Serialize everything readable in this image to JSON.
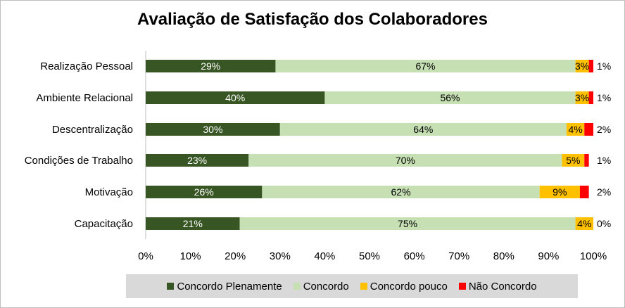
{
  "chart_data": {
    "type": "bar",
    "orientation": "horizontal",
    "stacked": true,
    "title": "Avaliação de Satisfação dos Colaboradores",
    "categories": [
      "Realização Pessoal",
      "Ambiente Relacional",
      "Descentralização",
      "Condições de Trabalho",
      "Motivação",
      "Capacitação"
    ],
    "series": [
      {
        "name": "Concordo Plenamente",
        "color": "#375623",
        "values": [
          29,
          40,
          30,
          23,
          26,
          21
        ]
      },
      {
        "name": "Concordo",
        "color": "#c6e0b4",
        "values": [
          67,
          56,
          64,
          70,
          62,
          75
        ]
      },
      {
        "name": "Concordo pouco",
        "color": "#ffc000",
        "values": [
          3,
          3,
          4,
          5,
          9,
          4
        ]
      },
      {
        "name": "Não Concordo",
        "color": "#ff0000",
        "values": [
          1,
          1,
          2,
          1,
          2,
          0
        ]
      }
    ],
    "value_labels": [
      [
        "29%",
        "67%",
        "3%",
        "1%"
      ],
      [
        "40%",
        "56%",
        "3%",
        "1%"
      ],
      [
        "30%",
        "64%",
        "4%",
        "2%"
      ],
      [
        "23%",
        "70%",
        "5%",
        "1%"
      ],
      [
        "26%",
        "62%",
        "9%",
        "2%"
      ],
      [
        "21%",
        "75%",
        "4%",
        "0%"
      ]
    ],
    "xlim": [
      0,
      100
    ],
    "x_ticks": [
      "0%",
      "10%",
      "20%",
      "30%",
      "40%",
      "50%",
      "60%",
      "70%",
      "80%",
      "90%",
      "100%"
    ],
    "xlabel": "",
    "ylabel": "",
    "grid": false,
    "legend_position": "bottom"
  }
}
